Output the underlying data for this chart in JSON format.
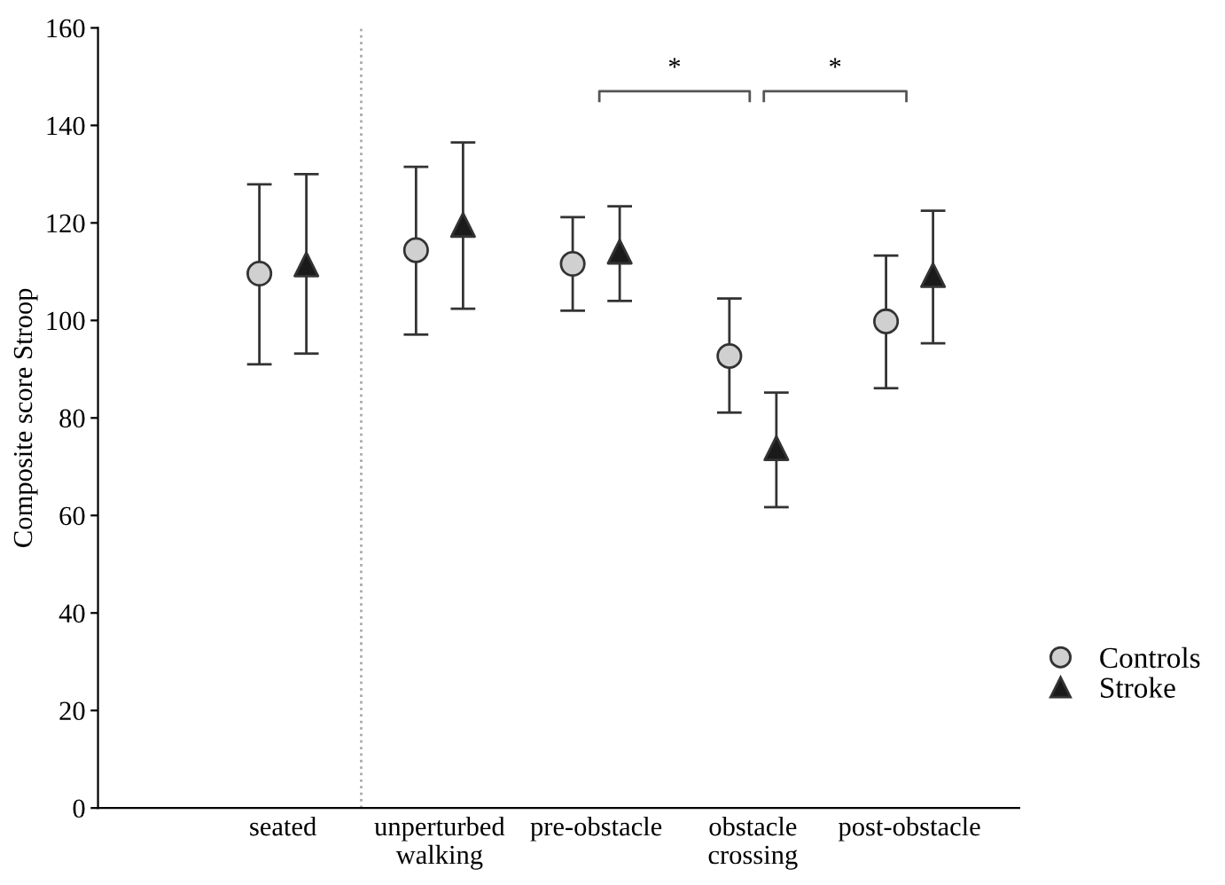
{
  "chart_data": {
    "type": "scatter",
    "ylabel": "Composite score Stroop",
    "categories": [
      "seated",
      "unperturbed\nwalking",
      "pre-obstacle",
      "obstacle\ncrossing",
      "post-obstacle"
    ],
    "series": [
      {
        "name": "Controls",
        "color": "#d0d0d0",
        "marker": "circle",
        "values": [
          109.6,
          114.4,
          111.6,
          92.7,
          99.8
        ],
        "errors": [
          [
            91.0,
            127.9
          ],
          [
            97.1,
            131.5
          ],
          [
            102.0,
            121.2
          ],
          [
            81.1,
            104.5
          ],
          [
            86.1,
            113.3
          ]
        ]
      },
      {
        "name": "Stroke",
        "color": "#1a1a1a",
        "marker": "triangle",
        "values": [
          111.5,
          119.6,
          114.1,
          73.8,
          109.3
        ],
        "errors": [
          [
            93.2,
            130.0
          ],
          [
            102.4,
            136.5
          ],
          [
            104.0,
            123.4
          ],
          [
            61.7,
            85.2
          ],
          [
            95.3,
            122.5
          ]
        ]
      }
    ],
    "ylim": [
      0,
      160
    ],
    "yticks": [
      0,
      20,
      40,
      60,
      80,
      100,
      120,
      140,
      160
    ],
    "annotations": [
      "*",
      "*"
    ],
    "legend": "right",
    "grid": false
  }
}
